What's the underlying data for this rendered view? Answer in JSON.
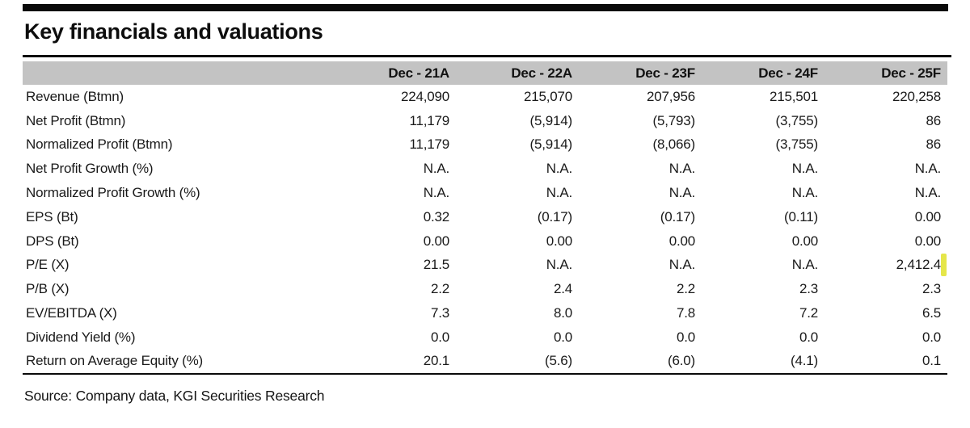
{
  "title": "Key financials and valuations",
  "source": "Source: Company data, KGI Securities Research",
  "colors": {
    "header_band": "#c3c3c3",
    "rule": "#0a0a0a",
    "highlight": "#e5e64a"
  },
  "table": {
    "label_header": "",
    "columns": [
      "Dec - 21A",
      "Dec - 22A",
      "Dec - 23F",
      "Dec - 24F",
      "Dec - 25F"
    ],
    "rows": [
      {
        "label": "Revenue (Btmn)",
        "values": [
          "224,090",
          "215,070",
          "207,956",
          "215,501",
          "220,258"
        ]
      },
      {
        "label": "Net Profit (Btmn)",
        "values": [
          "11,179",
          "(5,914)",
          "(5,793)",
          "(3,755)",
          "86"
        ]
      },
      {
        "label": "Normalized Profit (Btmn)",
        "values": [
          "11,179",
          "(5,914)",
          "(8,066)",
          "(3,755)",
          "86"
        ]
      },
      {
        "label": "Net Profit Growth (%)",
        "values": [
          "N.A.",
          "N.A.",
          "N.A.",
          "N.A.",
          "N.A."
        ]
      },
      {
        "label": "Normalized Profit Growth (%)",
        "values": [
          "N.A.",
          "N.A.",
          "N.A.",
          "N.A.",
          "N.A."
        ]
      },
      {
        "label": "EPS (Bt)",
        "values": [
          "0.32",
          "(0.17)",
          "(0.17)",
          "(0.11)",
          "0.00"
        ]
      },
      {
        "label": "DPS (Bt)",
        "values": [
          "0.00",
          "0.00",
          "0.00",
          "0.00",
          "0.00"
        ]
      },
      {
        "label": "P/E (X)",
        "values": [
          "21.5",
          "N.A.",
          "N.A.",
          "N.A.",
          "2,412.4"
        ]
      },
      {
        "label": "P/B (X)",
        "values": [
          "2.2",
          "2.4",
          "2.2",
          "2.3",
          "2.3"
        ]
      },
      {
        "label": "EV/EBITDA (X)",
        "values": [
          "7.3",
          "8.0",
          "7.8",
          "7.2",
          "6.5"
        ]
      },
      {
        "label": "Dividend Yield (%)",
        "values": [
          "0.0",
          "0.0",
          "0.0",
          "0.0",
          "0.0"
        ]
      },
      {
        "label": "Return on Average Equity (%)",
        "values": [
          "20.1",
          "(5.6)",
          "(6.0)",
          "(4.1)",
          "0.1"
        ]
      }
    ],
    "highlight_cell": {
      "row_index": 7,
      "col_index": 4
    }
  }
}
